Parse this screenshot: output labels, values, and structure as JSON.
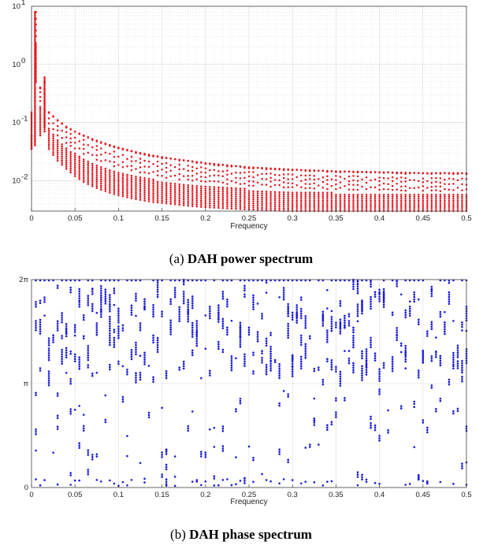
{
  "chart_data": [
    {
      "type": "scatter",
      "caption_prefix": "(a) ",
      "caption_bold": "DAH power spectrum",
      "xlabel": "Frequency",
      "ylabel": "",
      "xlim": [
        0,
        0.5
      ],
      "ylim": [
        0.003,
        10
      ],
      "yscale": "log",
      "grid": true,
      "marker_color": "#e8141c",
      "x_ticks": [
        "0",
        "0.05",
        "0.1",
        "0.15",
        "0.2",
        "0.25",
        "0.3",
        "0.35",
        "0.4",
        "0.45",
        "0.5"
      ],
      "y_ticks": [
        {
          "base": "10",
          "exp": "-2",
          "value": 0.01
        },
        {
          "base": "10",
          "exp": "-1",
          "value": 0.1
        },
        {
          "base": "10",
          "exp": "0",
          "value": 1
        },
        {
          "base": "10",
          "exp": "1",
          "value": 10
        }
      ],
      "series": [
        {
          "x": [
            0,
            0.005,
            0.01,
            0.015,
            0.02,
            0.03,
            0.04,
            0.05,
            0.06,
            0.07,
            0.08,
            0.09,
            0.1,
            0.12,
            0.14,
            0.16,
            0.18,
            0.2,
            0.25,
            0.3,
            0.35,
            0.4,
            0.45,
            0.5
          ],
          "y": [
            0.06,
            8,
            0.4,
            0.5,
            0.15,
            0.11,
            0.085,
            0.07,
            0.06,
            0.052,
            0.046,
            0.041,
            0.037,
            0.031,
            0.027,
            0.024,
            0.022,
            0.02,
            0.017,
            0.0155,
            0.0145,
            0.014,
            0.0135,
            0.0135
          ]
        },
        {
          "x": [
            0,
            0.005,
            0.01,
            0.015,
            0.02,
            0.03,
            0.04,
            0.05,
            0.06,
            0.07,
            0.08,
            0.09,
            0.1,
            0.12,
            0.14,
            0.16,
            0.18,
            0.2,
            0.25,
            0.3,
            0.35,
            0.4,
            0.45,
            0.5
          ],
          "y": [
            0.04,
            2.5,
            0.2,
            0.25,
            0.08,
            0.05,
            0.038,
            0.03,
            0.025,
            0.021,
            0.018,
            0.016,
            0.014,
            0.012,
            0.0105,
            0.0095,
            0.0088,
            0.0082,
            0.0072,
            0.0066,
            0.0062,
            0.006,
            0.0058,
            0.0058
          ]
        },
        {
          "x": [
            0,
            0.005,
            0.01,
            0.015,
            0.02,
            0.03,
            0.04,
            0.05,
            0.06,
            0.07,
            0.08,
            0.09,
            0.1,
            0.12,
            0.14,
            0.16,
            0.18,
            0.2,
            0.25,
            0.3,
            0.35,
            0.4,
            0.45,
            0.5
          ],
          "y": [
            0.035,
            0.5,
            0.06,
            0.07,
            0.035,
            0.022,
            0.016,
            0.012,
            0.0095,
            0.008,
            0.007,
            0.0062,
            0.0056,
            0.0048,
            0.0043,
            0.004,
            0.0037,
            0.0035,
            0.0032,
            0.003,
            0.003,
            0.003,
            0.003,
            0.003
          ]
        }
      ]
    },
    {
      "type": "scatter",
      "caption_prefix": "(b) ",
      "caption_bold": "DAH phase spectrum",
      "xlabel": "Frequency",
      "ylabel": "",
      "xlim": [
        0,
        0.5
      ],
      "ylim": [
        0,
        6.2832
      ],
      "grid": true,
      "marker_color": "#1a1adc",
      "x_ticks": [
        "0",
        "0.05",
        "0.1",
        "0.15",
        "0.2",
        "0.25",
        "0.3",
        "0.35",
        "0.4",
        "0.45",
        "0.5"
      ],
      "y_ticks": [
        {
          "label": "0",
          "value": 0
        },
        {
          "label": "π",
          "value": 3.1416
        },
        {
          "label": "2π",
          "value": 6.2832
        }
      ]
    }
  ]
}
